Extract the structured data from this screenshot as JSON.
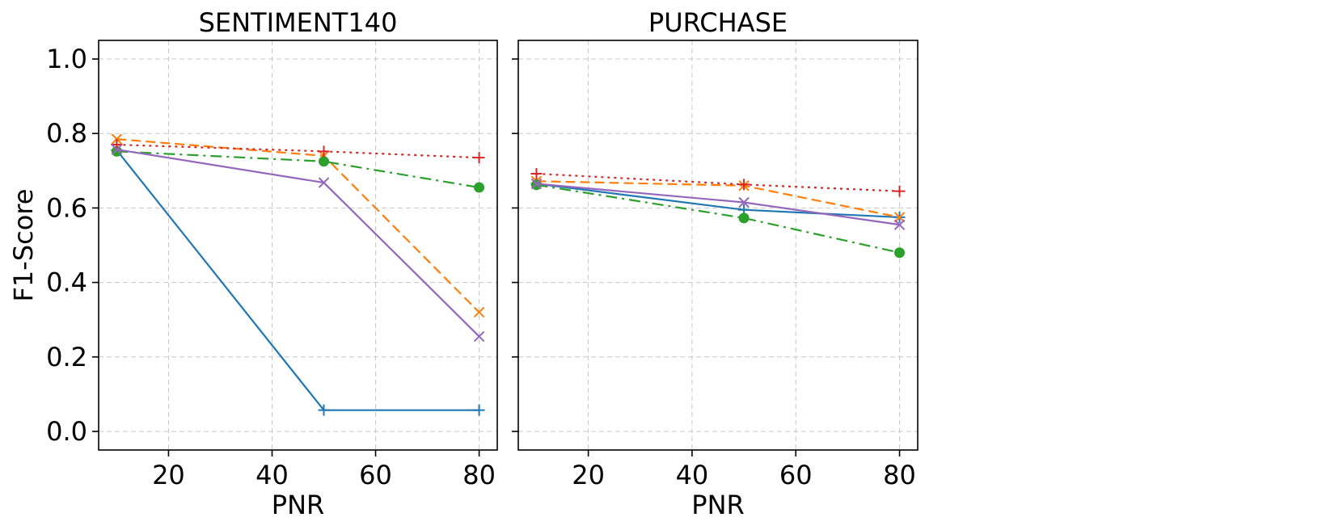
{
  "chart_data": [
    {
      "type": "line",
      "title": "SENTIMENT140",
      "xlabel": "PNR",
      "ylabel": "F1-Score",
      "xlim": [
        6.5,
        83.5
      ],
      "ylim": [
        -0.05,
        1.05
      ],
      "xticks": [
        "20",
        "40",
        "60",
        "80"
      ],
      "yticks": [
        "0.0",
        "0.2",
        "0.4",
        "0.6",
        "0.8",
        "1.0"
      ],
      "grid": true,
      "x": [
        10,
        50,
        80
      ],
      "series": [
        {
          "color": "#1f77b4",
          "dash": "none",
          "marker": "plus",
          "values": [
            0.755,
            0.057,
            0.057
          ]
        },
        {
          "color": "#ff7f0e",
          "dash": "dashed",
          "marker": "x",
          "values": [
            0.785,
            0.74,
            0.32
          ]
        },
        {
          "color": "#2ca02c",
          "dash": "dashdot",
          "marker": "circle",
          "values": [
            0.752,
            0.725,
            0.655
          ]
        },
        {
          "color": "#d62728",
          "dash": "dotted",
          "marker": "plus",
          "values": [
            0.77,
            0.752,
            0.735
          ]
        },
        {
          "color": "#9467bd",
          "dash": "none",
          "marker": "x",
          "values": [
            0.757,
            0.668,
            0.255
          ]
        }
      ]
    },
    {
      "type": "line",
      "title": "PURCHASE",
      "xlabel": "PNR",
      "ylabel": "",
      "xlim": [
        6.5,
        83.5
      ],
      "ylim": [
        -0.05,
        1.05
      ],
      "xticks": [
        "20",
        "40",
        "60",
        "80"
      ],
      "yticks": [],
      "grid": true,
      "x": [
        10,
        50,
        80
      ],
      "series": [
        {
          "color": "#1f77b4",
          "dash": "none",
          "marker": "plus",
          "values": [
            0.665,
            0.595,
            0.575
          ]
        },
        {
          "color": "#ff7f0e",
          "dash": "dashed",
          "marker": "x",
          "values": [
            0.672,
            0.66,
            0.575
          ]
        },
        {
          "color": "#2ca02c",
          "dash": "dashdot",
          "marker": "circle",
          "values": [
            0.662,
            0.573,
            0.48
          ]
        },
        {
          "color": "#d62728",
          "dash": "dotted",
          "marker": "plus",
          "values": [
            0.692,
            0.663,
            0.645
          ]
        },
        {
          "color": "#9467bd",
          "dash": "none",
          "marker": "x",
          "values": [
            0.665,
            0.615,
            0.555
          ]
        }
      ]
    }
  ]
}
